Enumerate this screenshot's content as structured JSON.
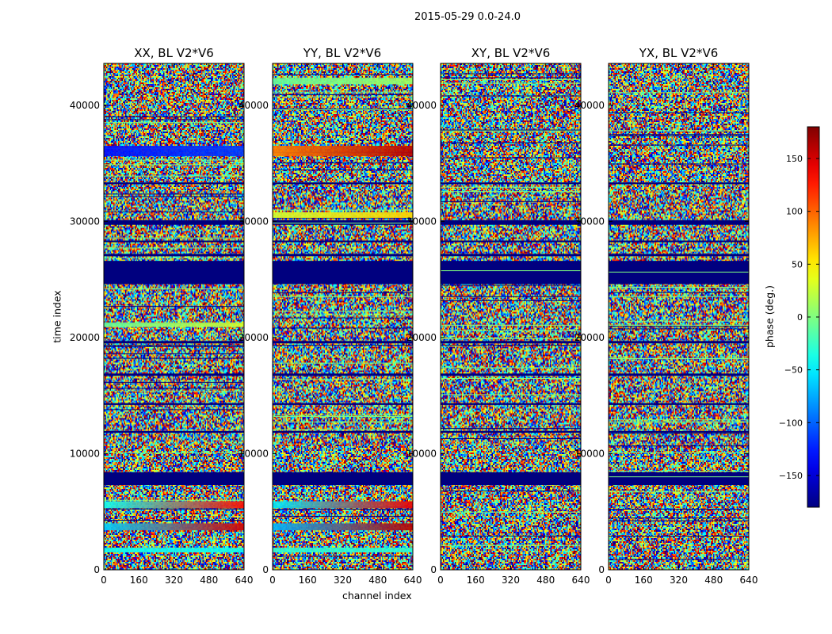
{
  "figure": {
    "suptitle": "2015-05-29 0.0-24.0",
    "xlabel": "channel index",
    "ylabel": "time index",
    "colorbar_label": "phase (deg.)"
  },
  "colors": {
    "colormap": "jet",
    "axis": "#000000",
    "background": "#ffffff"
  },
  "chart_data": [
    {
      "type": "heatmap",
      "title": "XX, BL V2*V6",
      "xlim": [
        0,
        640
      ],
      "ylim": [
        0,
        43600
      ],
      "xticks": [
        "0",
        "160",
        "320",
        "480",
        "640"
      ],
      "yticks": [
        "0",
        "10000",
        "20000",
        "30000",
        "40000"
      ],
      "coherent_bands": [
        {
          "t": [
            1500,
            1900
          ],
          "phase_start": -40,
          "phase_end": -40
        },
        {
          "t": [
            3400,
            4000
          ],
          "phase_start": -60,
          "phase_end": 150
        },
        {
          "t": [
            5300,
            5900
          ],
          "phase_start": -40,
          "phase_end": 130
        },
        {
          "t": [
            20900,
            21300
          ],
          "phase_start": -10,
          "phase_end": 30
        },
        {
          "t": [
            35600,
            36500
          ],
          "phase_start": -130,
          "phase_end": -115
        }
      ]
    },
    {
      "type": "heatmap",
      "title": "YY, BL V2*V6",
      "xlim": [
        0,
        640
      ],
      "ylim": [
        0,
        43600
      ],
      "xticks": [
        "0",
        "160",
        "320",
        "480",
        "640"
      ],
      "yticks": [
        "0",
        "10000",
        "20000",
        "30000",
        "40000"
      ],
      "coherent_bands": [
        {
          "t": [
            1500,
            1900
          ],
          "phase_start": -30,
          "phase_end": -30
        },
        {
          "t": [
            3400,
            4000
          ],
          "phase_start": -70,
          "phase_end": 160
        },
        {
          "t": [
            5300,
            5900
          ],
          "phase_start": -50,
          "phase_end": 140
        },
        {
          "t": [
            30300,
            30800
          ],
          "phase_start": 30,
          "phase_end": 60
        },
        {
          "t": [
            35600,
            36500
          ],
          "phase_start": 90,
          "phase_end": 160
        },
        {
          "t": [
            41800,
            42300
          ],
          "phase_start": -10,
          "phase_end": 10
        }
      ]
    },
    {
      "type": "heatmap",
      "title": "XY, BL V2*V6",
      "xlim": [
        0,
        640
      ],
      "ylim": [
        0,
        43600
      ],
      "xticks": [
        "0",
        "160",
        "320",
        "480",
        "640"
      ],
      "yticks": [
        "0",
        "10000",
        "20000",
        "30000",
        "40000"
      ],
      "coherent_bands": []
    },
    {
      "type": "heatmap",
      "title": "YX, BL V2*V6",
      "xlim": [
        0,
        640
      ],
      "ylim": [
        0,
        43600
      ],
      "xticks": [
        "0",
        "160",
        "320",
        "480",
        "640"
      ],
      "yticks": [
        "0",
        "10000",
        "20000",
        "30000",
        "40000"
      ],
      "coherent_bands": []
    }
  ],
  "flagged_time_ranges": [
    [
      7300,
      8400
    ],
    [
      24600,
      26600
    ],
    [
      29700,
      30100
    ],
    [
      16700,
      16900
    ],
    [
      11800,
      11950
    ],
    [
      27000,
      27200
    ],
    [
      28200,
      28350
    ],
    [
      19500,
      19700
    ],
    [
      14200,
      14350
    ],
    [
      33200,
      33350
    ]
  ],
  "colorbar": {
    "vmin": -180,
    "vmax": 180,
    "ticks": [
      {
        "value": 150,
        "label": "150"
      },
      {
        "value": 100,
        "label": "100"
      },
      {
        "value": 50,
        "label": "50"
      },
      {
        "value": 0,
        "label": "0"
      },
      {
        "value": -50,
        "label": "−50"
      },
      {
        "value": -100,
        "label": "−100"
      },
      {
        "value": -150,
        "label": "−150"
      }
    ]
  }
}
